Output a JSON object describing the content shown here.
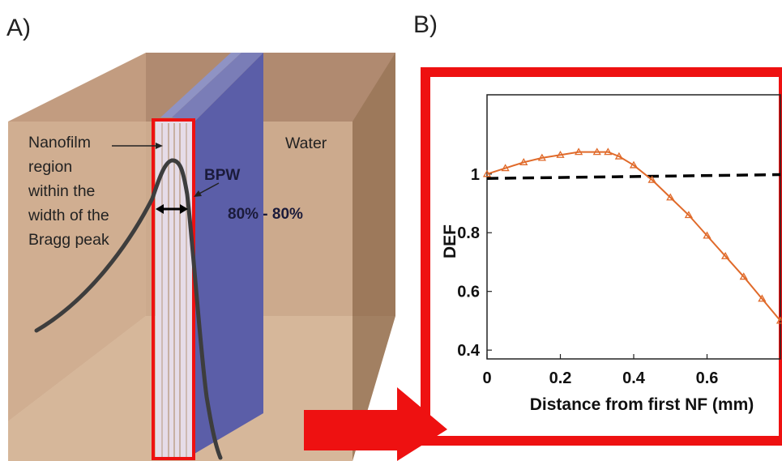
{
  "panels": {
    "a": "A)",
    "b": "B)"
  },
  "diagram": {
    "nanofilm_label": [
      "Nanofilm",
      "region",
      "within the",
      "width of the",
      "Bragg peak"
    ],
    "water_label": "Water",
    "bpw_label": "BPW",
    "range_label": "80% - 80%"
  },
  "colors": {
    "frame": "#ee1111",
    "data_series": "#e06a2a",
    "reference_line": "#000000",
    "water_box": "#c9a58a",
    "target_slab": "#5b5ea8"
  },
  "chart_data": {
    "type": "line",
    "xlabel": "Distance from first NF (mm)",
    "ylabel": "DEF",
    "xlim": [
      0,
      0.8
    ],
    "ylim": [
      0.37,
      1.27
    ],
    "xticks": [
      0,
      0.2,
      0.4,
      0.6
    ],
    "xtick_labels": [
      "0",
      "0.2",
      "0.4",
      "0.6"
    ],
    "yticks": [
      0.4,
      0.6,
      0.8,
      1
    ],
    "ytick_labels": [
      "0.4",
      "0.6",
      "0.8",
      "1"
    ],
    "grid": false,
    "series": [
      {
        "style": "line-with-triangle-markers",
        "x": [
          0,
          0.05,
          0.1,
          0.15,
          0.2,
          0.25,
          0.3,
          0.33,
          0.36,
          0.4,
          0.45,
          0.5,
          0.55,
          0.6,
          0.65,
          0.7,
          0.75,
          0.8
        ],
        "y": [
          1.0,
          1.02,
          1.04,
          1.055,
          1.065,
          1.075,
          1.075,
          1.075,
          1.06,
          1.03,
          0.98,
          0.92,
          0.86,
          0.79,
          0.72,
          0.65,
          0.575,
          0.5
        ]
      },
      {
        "style": "dashed-reference",
        "x": [
          0,
          0.8
        ],
        "y": [
          0.985,
          0.998
        ]
      }
    ]
  }
}
